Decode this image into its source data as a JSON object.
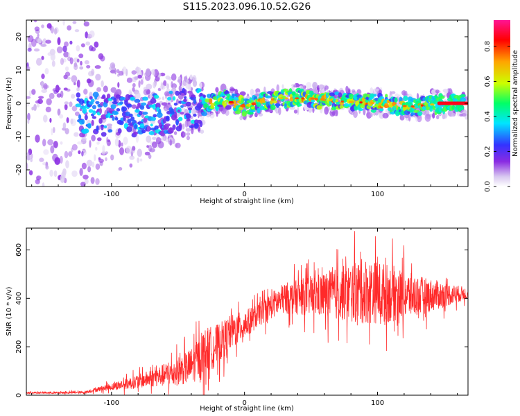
{
  "title": "S115.2023.096.10.52.G26",
  "chart_data": [
    {
      "type": "heatmap",
      "xlabel": "Height of straight line (km)",
      "ylabel": "Frequency (Hz)",
      "xlim": [
        -164,
        168
      ],
      "ylim": [
        -25,
        25
      ],
      "xticks": [
        -100,
        0,
        100
      ],
      "yticks": [
        -20,
        -10,
        0,
        10,
        20
      ],
      "colorbar": {
        "label": "Normalized spectral amplitude",
        "range": [
          0.0,
          0.95
        ],
        "ticks": [
          0.0,
          0.2,
          0.4,
          0.6,
          0.8
        ],
        "colormap": [
          "#ffffff",
          "#d8c8f0",
          "#8a2be2",
          "#3333ff",
          "#00e5ff",
          "#00ff66",
          "#ccff00",
          "#ffa500",
          "#ff0000",
          "#ff1493"
        ]
      },
      "ridge": {
        "description_points": [
          {
            "x": -115,
            "y": -3
          },
          {
            "x": -90,
            "y": -4
          },
          {
            "x": -60,
            "y": -3
          },
          {
            "x": -35,
            "y": -1
          },
          {
            "x": -15,
            "y": 1
          },
          {
            "x": 0,
            "y": -1
          },
          {
            "x": 25,
            "y": 1.5
          },
          {
            "x": 50,
            "y": 1.5
          },
          {
            "x": 75,
            "y": 0.5
          },
          {
            "x": 100,
            "y": 0
          },
          {
            "x": 125,
            "y": -1
          },
          {
            "x": 150,
            "y": 0
          },
          {
            "x": 168,
            "y": 0
          }
        ]
      }
    },
    {
      "type": "line",
      "xlabel": "Height of straight line (km)",
      "ylabel": "SNR (10 * v/v)",
      "xlim": [
        -164,
        168
      ],
      "ylim": [
        0,
        690
      ],
      "xticks": [
        -100,
        0,
        100
      ],
      "yticks": [
        0,
        200,
        400,
        600
      ],
      "series": [
        {
          "color": "#ff2a2a",
          "envelope": [
            {
              "x": -164,
              "y": 10
            },
            {
              "x": -140,
              "y": 10
            },
            {
              "x": -120,
              "y": 12
            },
            {
              "x": -110,
              "y": 25
            },
            {
              "x": -90,
              "y": 45
            },
            {
              "x": -70,
              "y": 70
            },
            {
              "x": -55,
              "y": 90
            },
            {
              "x": -40,
              "y": 120
            },
            {
              "x": -30,
              "y": 180
            },
            {
              "x": -20,
              "y": 210
            },
            {
              "x": -10,
              "y": 260
            },
            {
              "x": 0,
              "y": 290
            },
            {
              "x": 10,
              "y": 330
            },
            {
              "x": 20,
              "y": 370
            },
            {
              "x": 30,
              "y": 400
            },
            {
              "x": 50,
              "y": 410
            },
            {
              "x": 75,
              "y": 420
            },
            {
              "x": 90,
              "y": 430
            },
            {
              "x": 110,
              "y": 420
            },
            {
              "x": 130,
              "y": 410
            },
            {
              "x": 150,
              "y": 415
            },
            {
              "x": 168,
              "y": 420
            }
          ],
          "noise": [
            {
              "x": -164,
              "a": 5
            },
            {
              "x": -120,
              "a": 8
            },
            {
              "x": -100,
              "a": 25
            },
            {
              "x": -70,
              "a": 60
            },
            {
              "x": -45,
              "a": 110
            },
            {
              "x": -30,
              "a": 160
            },
            {
              "x": -10,
              "a": 120
            },
            {
              "x": 10,
              "a": 80
            },
            {
              "x": 40,
              "a": 120
            },
            {
              "x": 70,
              "a": 180
            },
            {
              "x": 90,
              "a": 230
            },
            {
              "x": 110,
              "a": 200
            },
            {
              "x": 130,
              "a": 140
            },
            {
              "x": 168,
              "a": 40
            }
          ]
        }
      ]
    }
  ]
}
